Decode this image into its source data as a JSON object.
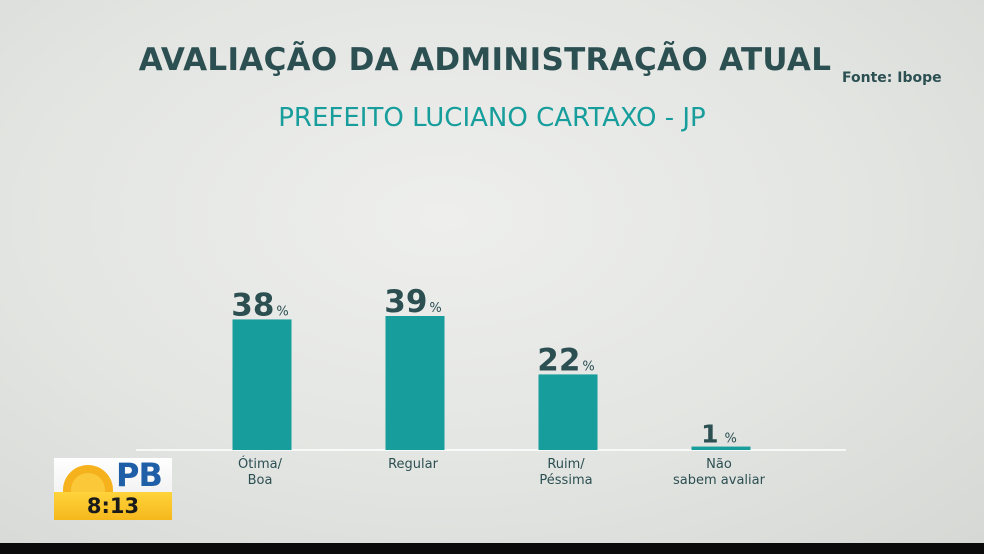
{
  "source": "Fonte: Ibope",
  "broadcast": {
    "logo_text": "PB",
    "time": "8:13"
  },
  "colors": {
    "bar": "#179e9c",
    "title": "#2c4f52",
    "subtitle": "#179e9c",
    "logo_sun": "#f6b21c"
  },
  "chart_data": {
    "type": "bar",
    "title": "AVALIAÇÃO DA ADMINISTRAÇÃO ATUAL",
    "subtitle": "PREFEITO LUCIANO CARTAXO - JP",
    "categories": [
      [
        "Ótima/",
        "Boa"
      ],
      [
        "Regular"
      ],
      [
        "Ruim/",
        "Péssima"
      ],
      [
        "Não",
        "sabem avaliar"
      ]
    ],
    "values": [
      38,
      39,
      22,
      1
    ],
    "unit": "%",
    "ylim": [
      0,
      39
    ],
    "grid": false,
    "legend": "none"
  }
}
